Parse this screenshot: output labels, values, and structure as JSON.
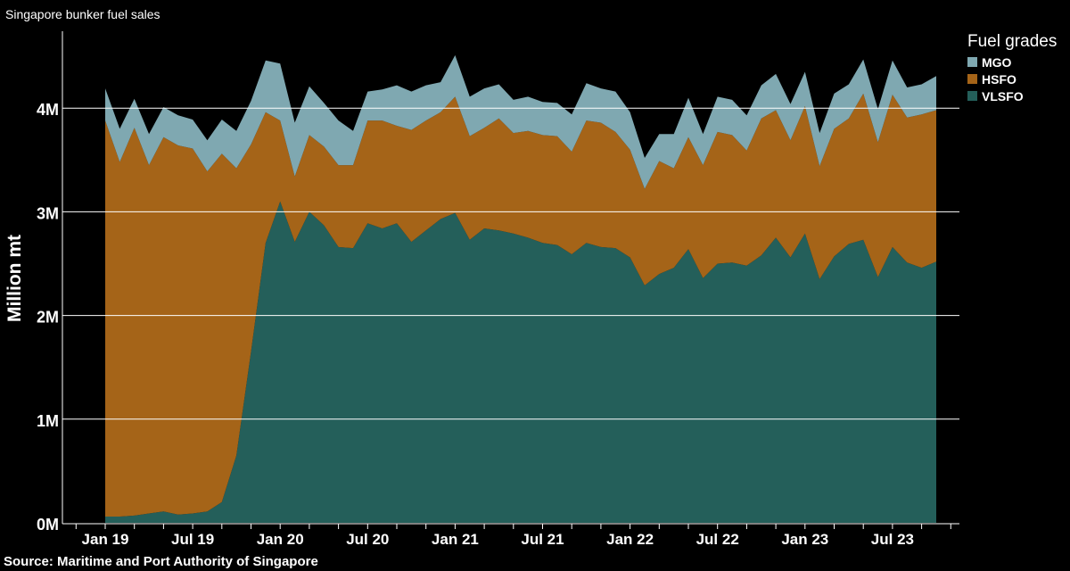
{
  "subtitle": "Singapore bunker fuel sales",
  "source": "Source: Maritime and Port Authority of Singapore",
  "chart_data": {
    "type": "area",
    "stacked": true,
    "title": "",
    "subtitle": "Singapore bunker fuel sales",
    "xlabel": "",
    "ylabel": "Million mt",
    "ylim": [
      0,
      4.7
    ],
    "y_ticks": [
      0,
      1,
      2,
      3,
      4
    ],
    "y_tick_labels": [
      "0M",
      "1M",
      "2M",
      "3M",
      "4M"
    ],
    "x_tick_labels": [
      "Jan 19",
      "Jul 19",
      "Jan 20",
      "Jul 20",
      "Jan 21",
      "Jul 21",
      "Jan 22",
      "Jul 22",
      "Jan 23",
      "Jul 23"
    ],
    "x_tick_month_index": [
      0,
      6,
      12,
      18,
      24,
      30,
      36,
      42,
      48,
      54
    ],
    "x_months": [
      "2019-01",
      "2019-02",
      "2019-03",
      "2019-04",
      "2019-05",
      "2019-06",
      "2019-07",
      "2019-08",
      "2019-09",
      "2019-10",
      "2019-11",
      "2019-12",
      "2020-01",
      "2020-02",
      "2020-03",
      "2020-04",
      "2020-05",
      "2020-06",
      "2020-07",
      "2020-08",
      "2020-09",
      "2020-10",
      "2020-11",
      "2020-12",
      "2021-01",
      "2021-02",
      "2021-03",
      "2021-04",
      "2021-05",
      "2021-06",
      "2021-07",
      "2021-08",
      "2021-09",
      "2021-10",
      "2021-11",
      "2021-12",
      "2022-01",
      "2022-02",
      "2022-03",
      "2022-04",
      "2022-05",
      "2022-06",
      "2022-07",
      "2022-08",
      "2022-09",
      "2022-10",
      "2022-11",
      "2022-12",
      "2023-01",
      "2023-02",
      "2023-03",
      "2023-04",
      "2023-05",
      "2023-06",
      "2023-07",
      "2023-08",
      "2023-09",
      "2023-10"
    ],
    "grid": true,
    "legend": {
      "title": "Fuel grades",
      "position": "top-right"
    },
    "series": [
      {
        "name": "VLSFO",
        "color": "#245f5a",
        "values": [
          0.06,
          0.06,
          0.07,
          0.09,
          0.11,
          0.08,
          0.09,
          0.11,
          0.2,
          0.65,
          1.65,
          2.7,
          3.1,
          2.71,
          3.0,
          2.87,
          2.66,
          2.65,
          2.89,
          2.84,
          2.89,
          2.71,
          2.82,
          2.93,
          2.99,
          2.73,
          2.84,
          2.82,
          2.79,
          2.75,
          2.7,
          2.68,
          2.59,
          2.7,
          2.66,
          2.65,
          2.56,
          2.29,
          2.4,
          2.46,
          2.64,
          2.36,
          2.5,
          2.51,
          2.48,
          2.58,
          2.75,
          2.56,
          2.79,
          2.35,
          2.57,
          2.69,
          2.73,
          2.37,
          2.66,
          2.51,
          2.46,
          2.52
        ]
      },
      {
        "name": "HSFO",
        "color": "#a56418",
        "values": [
          3.82,
          3.42,
          3.74,
          3.36,
          3.61,
          3.56,
          3.52,
          3.28,
          3.36,
          2.77,
          2.0,
          1.26,
          0.78,
          0.63,
          0.74,
          0.76,
          0.79,
          0.8,
          0.99,
          1.04,
          0.94,
          1.08,
          1.06,
          1.03,
          1.12,
          1.0,
          0.97,
          1.08,
          0.97,
          1.03,
          1.04,
          1.05,
          0.99,
          1.18,
          1.2,
          1.12,
          1.04,
          0.93,
          1.09,
          0.96,
          1.08,
          1.09,
          1.27,
          1.23,
          1.11,
          1.32,
          1.23,
          1.13,
          1.23,
          1.09,
          1.23,
          1.21,
          1.41,
          1.3,
          1.47,
          1.4,
          1.48,
          1.46
        ]
      },
      {
        "name": "MGO",
        "color": "#7fa8b1",
        "values": [
          0.31,
          0.32,
          0.28,
          0.3,
          0.29,
          0.29,
          0.28,
          0.3,
          0.33,
          0.36,
          0.42,
          0.5,
          0.55,
          0.52,
          0.47,
          0.42,
          0.43,
          0.33,
          0.28,
          0.3,
          0.39,
          0.37,
          0.34,
          0.29,
          0.4,
          0.38,
          0.38,
          0.33,
          0.32,
          0.33,
          0.32,
          0.32,
          0.36,
          0.36,
          0.33,
          0.39,
          0.36,
          0.3,
          0.26,
          0.33,
          0.38,
          0.3,
          0.34,
          0.34,
          0.34,
          0.32,
          0.35,
          0.35,
          0.33,
          0.32,
          0.34,
          0.33,
          0.33,
          0.32,
          0.33,
          0.29,
          0.29,
          0.33
        ]
      }
    ]
  }
}
